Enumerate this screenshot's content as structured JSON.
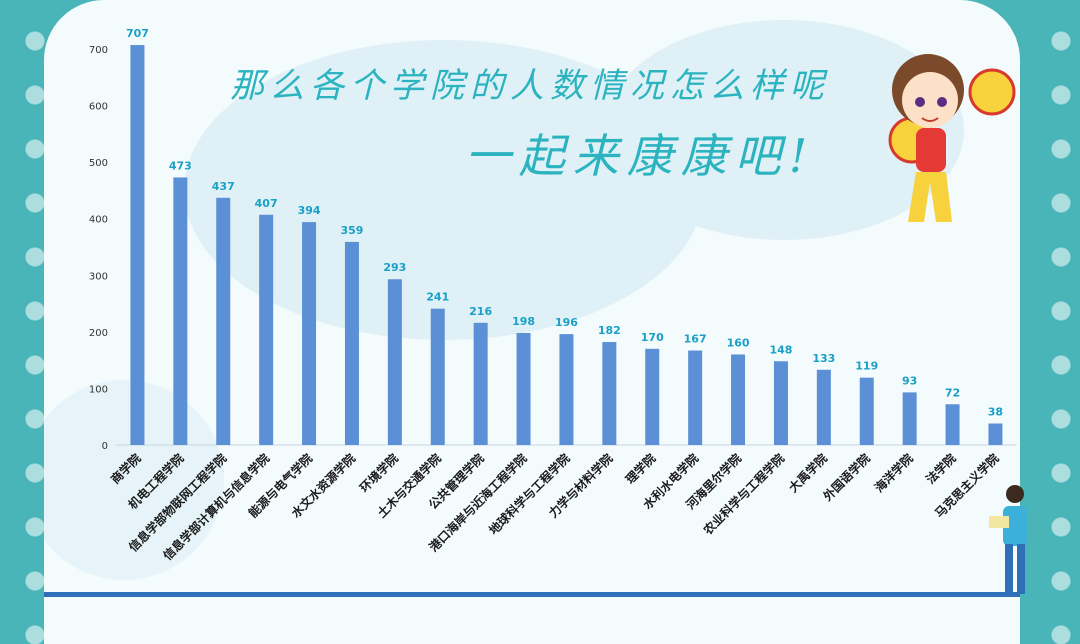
{
  "headline": {
    "line1": "那么各个学院的人数情况怎么样呢",
    "line2": "一起来康康吧!"
  },
  "colors": {
    "bar": "#5b8fd6",
    "value_label": "#1aa0c8",
    "accent": "#2bb3c0",
    "background": "#49b5b8"
  },
  "chart_data": {
    "type": "bar",
    "categories": [
      "商学院",
      "机电工程学院",
      "信息学部物联网工程学院",
      "信息学部计算机与信息学院",
      "能源与电气学院",
      "水文水资源学院",
      "环境学院",
      "土木与交通学院",
      "公共管理学院",
      "港口海岸与近海工程学院",
      "地球科学与工程学院",
      "力学与材料学院",
      "理学院",
      "水利水电学院",
      "河海里尔学院",
      "农业科学与工程学院",
      "大禹学院",
      "外国语学院",
      "海洋学院",
      "法学院",
      "马克思主义学院"
    ],
    "values": [
      707,
      473,
      437,
      407,
      394,
      359,
      293,
      241,
      216,
      198,
      196,
      182,
      170,
      167,
      160,
      148,
      133,
      119,
      93,
      72,
      38
    ],
    "yticks": [
      0,
      100,
      200,
      300,
      400,
      500,
      600,
      700
    ],
    "ylim": [
      0,
      700
    ],
    "title": "",
    "xlabel": "",
    "ylabel": "",
    "grid": false
  }
}
